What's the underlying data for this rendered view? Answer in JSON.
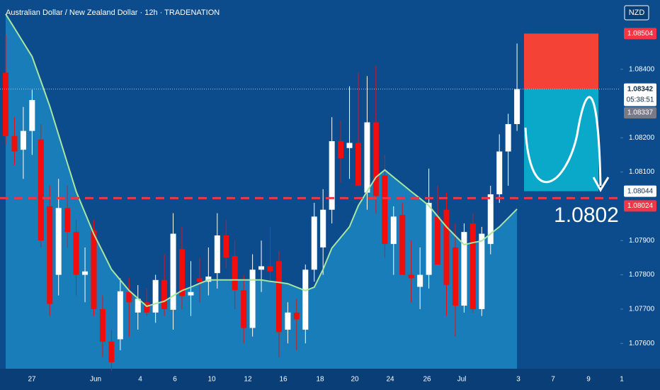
{
  "chart_data": {
    "type": "candlestick",
    "title": "Australian Dollar / New Zealand Dollar · 12h · TRADENATION",
    "currency": "NZD",
    "up_color": "#ffffff",
    "down_color": "#f20d0d",
    "ma_color": "#a8e6a0",
    "ylim": [
      1.07526,
      1.08602
    ],
    "yticks": [
      {
        "value": 1.084,
        "label": "1.08400"
      },
      {
        "value": 1.082,
        "label": "1.08200"
      },
      {
        "value": 1.081,
        "label": "1.08100"
      },
      {
        "value": 1.079,
        "label": "1.07900"
      },
      {
        "value": 1.078,
        "label": "1.07800"
      },
      {
        "value": 1.077,
        "label": "1.07700"
      },
      {
        "value": 1.076,
        "label": "1.07600"
      }
    ],
    "xticks": [
      "27",
      "Jun",
      "4",
      "6",
      "10",
      "12",
      "16",
      "18",
      "20",
      "24",
      "26",
      "Jul",
      "3",
      "7",
      "9",
      "1"
    ],
    "open": [
      1.0839,
      1.08205,
      1.08165,
      1.0822,
      1.08195,
      1.08,
      1.078,
      1.07995,
      1.07925,
      1.078,
      1.0793,
      1.077,
      1.07605,
      1.07612,
      1.0775,
      1.0769,
      1.0772,
      1.0769,
      1.07785,
      1.07698,
      1.07875,
      1.0774,
      1.0779,
      1.0778,
      1.07805,
      1.07915,
      1.07855,
      1.07755,
      1.07645,
      1.07815,
      1.07825,
      1.0784,
      1.0764,
      1.0769,
      1.0764,
      1.07815,
      1.0788,
      1.0799,
      1.0819,
      1.0817,
      1.08185,
      1.0804,
      1.08245,
      1.0809,
      1.0789,
      1.07975,
      1.078,
      1.07765,
      1.078,
      1.0797,
      1.0799,
      1.0788,
      1.0771,
      1.0795,
      1.077,
      1.0789,
      1.08035,
      1.0816,
      1.0824
    ],
    "high": [
      1.085,
      1.0826,
      1.0829,
      1.0834,
      1.0824,
      1.0806,
      1.0808,
      1.0806,
      1.0796,
      1.0788,
      1.0796,
      1.0774,
      1.0764,
      1.0779,
      1.0779,
      1.0777,
      1.0776,
      1.078,
      1.0786,
      1.0798,
      1.0794,
      1.0784,
      1.0785,
      1.0788,
      1.0798,
      1.0796,
      1.079,
      1.078,
      1.0786,
      1.079,
      1.0794,
      1.0787,
      1.0772,
      1.0773,
      1.0783,
      1.0801,
      1.0805,
      1.0826,
      1.0825,
      1.0835,
      1.0839,
      1.0838,
      1.0841,
      1.0815,
      1.08,
      1.0801,
      1.079,
      1.0788,
      1.0811,
      1.0806,
      1.0804,
      1.0795,
      1.0795,
      1.0798,
      1.0794,
      1.0806,
      1.0821,
      1.0827,
      1.08475
    ],
    "low": [
      1.0818,
      1.0812,
      1.0808,
      1.0815,
      1.0788,
      1.0768,
      1.0774,
      1.0788,
      1.0774,
      1.0772,
      1.0768,
      1.0756,
      1.0752,
      1.0758,
      1.0762,
      1.0764,
      1.0768,
      1.0766,
      1.0768,
      1.0764,
      1.077,
      1.0768,
      1.0772,
      1.0774,
      1.0776,
      1.0782,
      1.077,
      1.076,
      1.0762,
      1.0775,
      1.0778,
      1.0756,
      1.076,
      1.0758,
      1.076,
      1.0778,
      1.078,
      1.0795,
      1.0807,
      1.0808,
      1.0806,
      1.0799,
      1.0798,
      1.0785,
      1.078,
      1.078,
      1.0772,
      1.077,
      1.0776,
      1.0784,
      1.0768,
      1.0762,
      1.0769,
      1.0769,
      1.0768,
      1.0786,
      1.0801,
      1.0806,
      1.0822
    ],
    "close": [
      1.08205,
      1.0816,
      1.0822,
      1.0831,
      1.079,
      1.07715,
      1.07995,
      1.07925,
      1.078,
      1.0781,
      1.077,
      1.07605,
      1.07545,
      1.07752,
      1.0772,
      1.0773,
      1.0769,
      1.07785,
      1.077,
      1.0792,
      1.07738,
      1.0775,
      1.0778,
      1.07795,
      1.07915,
      1.0785,
      1.07755,
      1.07645,
      1.07815,
      1.07825,
      1.0781,
      1.07633,
      1.0769,
      1.0767,
      1.07815,
      1.0797,
      1.0799,
      1.0819,
      1.0814,
      1.08185,
      1.0806,
      1.08245,
      1.0803,
      1.0789,
      1.0797,
      1.078,
      1.0779,
      1.078,
      1.0801,
      1.0783,
      1.0777,
      1.0771,
      1.07925,
      1.077,
      1.0792,
      1.08035,
      1.0816,
      1.0824,
      1.08342
    ],
    "ma": [
      1.08561,
      1.0852,
      1.08478,
      1.08437,
      1.08365,
      1.08292,
      1.08209,
      1.08126,
      1.08043,
      1.07981,
      1.07919,
      1.07868,
      1.07816,
      1.07785,
      1.07754,
      1.07731,
      1.07708,
      1.07716,
      1.07723,
      1.07739,
      1.07754,
      1.07764,
      1.07775,
      1.07785,
      1.07785,
      1.07785,
      1.07785,
      1.07785,
      1.07785,
      1.07785,
      1.07781,
      1.07778,
      1.07774,
      1.07764,
      1.07754,
      1.07764,
      1.07816,
      1.07878,
      1.07909,
      1.0794,
      1.08002,
      1.08044,
      1.08085,
      1.08106,
      1.08085,
      1.08064,
      1.08043,
      1.08023,
      1.08002,
      1.07971,
      1.0794,
      1.07914,
      1.07888,
      1.07894,
      1.07899,
      1.0792,
      1.0794,
      1.07966,
      1.07992
    ],
    "price_labels": [
      {
        "value": 1.08504,
        "label": "1.08504",
        "color": "#f23645"
      },
      {
        "value": 1.08342,
        "label": "1.08342",
        "color": "#ffffff"
      },
      {
        "value": 1.08337,
        "label": "1.08337",
        "color": "#787b86"
      },
      {
        "value": 1.08044,
        "label": "1.08044",
        "color": "#ffffff"
      },
      {
        "value": 1.08024,
        "label": "1.08024",
        "color": "#f23645"
      }
    ],
    "countdown": "05:38:51",
    "target_annotation": "1.0802"
  }
}
